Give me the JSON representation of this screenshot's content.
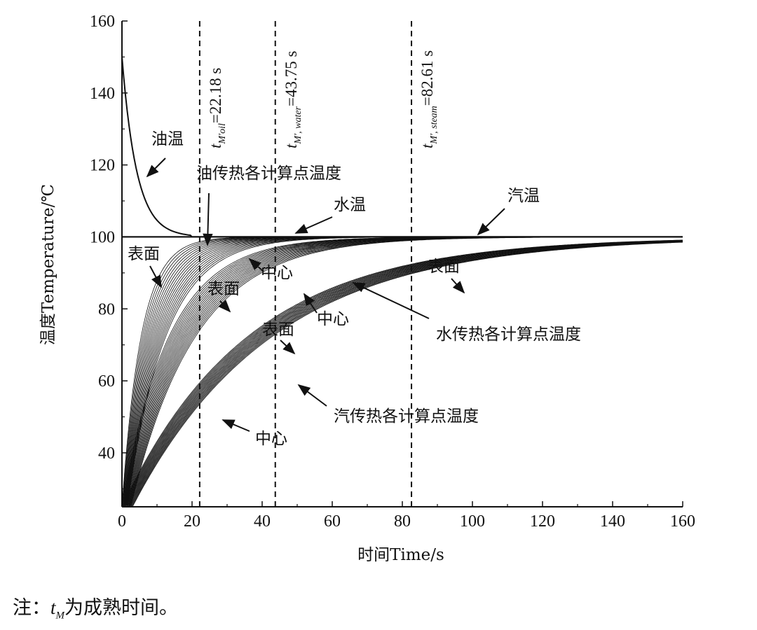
{
  "chart_data": {
    "type": "line",
    "xlabel": "时间Time/s",
    "ylabel": "温度Temperature/℃",
    "xlim": [
      0,
      160
    ],
    "ylim": [
      25,
      160
    ],
    "xticks": [
      "0",
      "20",
      "40",
      "60",
      "80",
      "100",
      "120",
      "140",
      "160"
    ],
    "yticks": [
      "40",
      "60",
      "80",
      "100",
      "120",
      "140",
      "160"
    ],
    "grid": false,
    "series": [
      {
        "name": "油温",
        "x": [
          0,
          2,
          5,
          8,
          12,
          16,
          20,
          160
        ],
        "y": [
          150,
          133,
          118,
          110,
          104,
          101,
          100,
          100
        ]
      },
      {
        "name": "水温",
        "x": [
          0,
          160
        ],
        "y": [
          100,
          100
        ]
      },
      {
        "name": "汽温",
        "x": [
          0,
          160
        ],
        "y": [
          100,
          100
        ]
      }
    ],
    "bands": [
      {
        "name": "油传热各计算点温度",
        "surface_tau": 5.5,
        "center_tau": 11,
        "center_delay": 1.5,
        "lines": 18
      },
      {
        "name": "水传热各计算点温度",
        "surface_tau": 13.5,
        "center_tau": 18.5,
        "center_delay": 2.5,
        "lines": 18
      },
      {
        "name": "汽传热各计算点温度",
        "surface_tau": 36,
        "center_tau": 40,
        "center_delay": 3,
        "lines": 18
      }
    ],
    "start_temperature": 25,
    "end_temperature": 100,
    "vlines": [
      {
        "x": 22.18,
        "label_main": "t",
        "label_sub": "M′oil",
        "label_value": "=22.18 s"
      },
      {
        "x": 43.75,
        "label_main": "t",
        "label_sub": "M′, water",
        "label_value": "=43.75 s"
      },
      {
        "x": 82.61,
        "label_main": "t",
        "label_sub": "M′, steam",
        "label_value": "=82.61 s"
      }
    ],
    "annotations": {
      "oil_temp": "油温",
      "oil_band": "油传热各计算点温度",
      "water_temp": "水温",
      "steam_temp": "汽温",
      "surface_1": "表面",
      "center_1": "中心",
      "surface_2": "表面",
      "center_2": "中心",
      "surface_3": "表面",
      "surface_4": "表面",
      "water_band": "水传热各计算点温度",
      "steam_band": "汽传热各计算点温度",
      "center_3": "中心"
    }
  },
  "note": {
    "prefix": "注：",
    "symbol": "t",
    "subscript": "M",
    "text": "为成熟时间。"
  }
}
